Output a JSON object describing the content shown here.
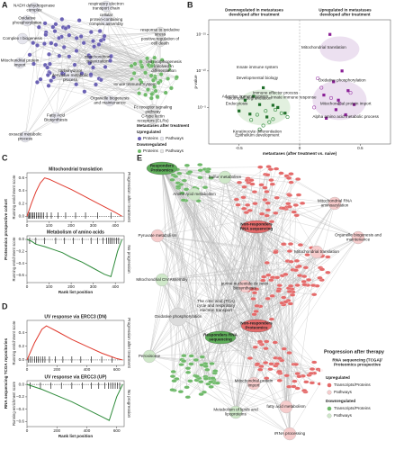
{
  "panel_labels": [
    "A",
    "B",
    "C",
    "D",
    "E"
  ],
  "network_a": {
    "nodes": [
      {
        "label": "NADH dehydrogenase complex",
        "color": "#e6e6ee"
      },
      {
        "label": "respiratory electron transport chain",
        "color": "#e6e6ee"
      },
      {
        "label": "Oxidative phosphorylation",
        "color": "#e6e6ee"
      },
      {
        "label": "cellular protein-containing complex assembly",
        "color": "#e6e6ee"
      },
      {
        "label": "Complex I biogenesis",
        "color": "#e6e6ee"
      },
      {
        "label": "Mitochondrial protein import",
        "color": "#e6e6ee"
      },
      {
        "label": "carbohydrate derivative metabolic process",
        "color": "#e6e6ee"
      },
      {
        "label": "mitochondrion organization",
        "color": "#e6e6ee"
      },
      {
        "label": "Organelle biogenesis and maintenance",
        "color": "#e6e6ee"
      },
      {
        "label": "Fatty Acid Biosynthesis",
        "color": "#e6e6ee"
      },
      {
        "label": "oxoacid metabolic process",
        "color": "#e6e6ee"
      },
      {
        "label": "response to oxidative stress",
        "color": "#e6e6e6"
      },
      {
        "label": "positive regulation of cell death",
        "color": "#e6e6e6"
      },
      {
        "label": "cell morphogenesis involved in differentiation",
        "color": "#e6e6e6"
      },
      {
        "label": "Innate Immune System",
        "color": "#e6e6e6"
      },
      {
        "label": "Fc receptor signaling pathway",
        "color": "#e6e6e6"
      },
      {
        "label": "C-type lectin receptors (CLRs)",
        "color": "#e6e6e6"
      }
    ],
    "up_color": "#6b62b4",
    "down_color": "#6fb96a",
    "legend": {
      "title": "Metastases after treatment",
      "up": "Upregulated",
      "up_proteins": "Proteins",
      "up_pathways": "Pathways",
      "down": "Downregulated",
      "down_proteins": "Proteins",
      "down_pathways": "Pathways"
    }
  },
  "chart_data": [
    {
      "type": "scatter",
      "header_left": "Downregulated in metastases developed after treatment",
      "header_right": "Upregulated in metastases developed after treatment",
      "x_label": "metastases (after treatment vs. naive)",
      "y_label": "p-value",
      "log_y": true,
      "xlim": [
        -0.75,
        0.75
      ],
      "xticks": [
        -0.5,
        0,
        0.5
      ],
      "ylim": [
        1,
        1e-17
      ],
      "yticks": [
        {
          "value": 1e-15,
          "label": "10⁻¹⁵"
        },
        {
          "value": 1e-10,
          "label": "10⁻¹⁰"
        },
        {
          "value": 1e-05,
          "label": "10⁻⁵"
        }
      ],
      "series": [
        {
          "color": "#1f6e2a",
          "marker": "square",
          "x": [
            -0.45,
            -0.38,
            -0.3,
            -0.22,
            -0.5,
            -0.33,
            -0.18,
            -0.41,
            -0.27,
            -0.12
          ],
          "values": [
            1e-06,
            3e-07,
            2e-08,
            5e-06,
            3e-05,
            4e-06,
            1e-05,
            8e-05,
            0.0002,
            6e-05
          ]
        },
        {
          "color": "#2e8b3a",
          "marker": "circle",
          "x": [
            -0.35,
            -0.28,
            -0.2,
            -0.15,
            -0.25,
            -0.4,
            -0.3,
            -0.1,
            -0.22,
            -0.33
          ],
          "values": [
            0.0001,
            3e-05,
            2e-05,
            6e-05,
            0.001,
            0.0005,
            0.003,
            0.0002,
            0.0004,
            0.01
          ]
        },
        {
          "color": "#8a1f96",
          "marker": "square",
          "x": [
            0.25,
            0.35,
            0.28,
            0.4,
            0.2,
            0.32,
            0.45,
            0.3,
            0.38,
            0.22
          ],
          "values": [
            1e-15,
            1e-10,
            3e-09,
            5e-08,
            2e-07,
            1e-06,
            4e-06,
            2e-05,
            0.0001,
            0.0003
          ]
        },
        {
          "color": "#a040ad",
          "marker": "circle",
          "x": [
            0.15,
            0.18,
            0.26,
            0.33,
            0.12,
            0.42
          ],
          "values": [
            1e-09,
            2e-08,
            5e-07,
            3e-06,
            1e-05,
            1e-07
          ]
        }
      ],
      "annotations": [
        "Innate immune system",
        "Developmental biology",
        "Immune effector process",
        "Adaptive immune system",
        "Neutrophil degranulation",
        "Innate immune response",
        "Endocytosis",
        "Keratinocyte differentiation",
        "Epithelium development",
        "Mitochondrial translation",
        "Oxidative phosphorylation",
        "Mitochondrial protein import",
        "Alpha amino acid metabolic process"
      ]
    },
    {
      "type": "line",
      "title": "Mitochondrial translation",
      "y_label": "Running enrichment score",
      "side_label": "Progression after treatment",
      "color": "#e03a2e",
      "x": [
        0,
        20,
        40,
        60,
        80,
        100,
        150,
        200,
        250,
        300,
        350,
        400,
        430
      ],
      "values": [
        0,
        0.2,
        0.38,
        0.52,
        0.6,
        0.58,
        0.5,
        0.42,
        0.33,
        0.24,
        0.15,
        0.06,
        0
      ],
      "hits": [
        5,
        10,
        15,
        22,
        28,
        35,
        42,
        50,
        58,
        66,
        75,
        90,
        110,
        140,
        175,
        220,
        265,
        320,
        380
      ],
      "xlim": [
        0,
        440
      ],
      "xticks": [
        0,
        100,
        200,
        300,
        400
      ],
      "ylim": [
        -0.08,
        0.68
      ],
      "yticks": [
        {
          "value": 0,
          "label": "0.0"
        },
        0.2,
        0.4,
        0.6
      ]
    },
    {
      "type": "line",
      "title": "Metabolism of amino acids",
      "y_label": "Running enrichment score",
      "x_label": "Rank list position",
      "side_label": "No progression",
      "color": "#2e8b3a",
      "x": [
        0,
        20,
        40,
        80,
        120,
        160,
        200,
        250,
        300,
        350,
        380,
        410,
        430
      ],
      "values": [
        0,
        -0.03,
        -0.08,
        -0.12,
        -0.17,
        -0.22,
        -0.3,
        -0.38,
        -0.48,
        -0.58,
        -0.62,
        -0.2,
        0
      ],
      "hits": [
        12,
        40,
        80,
        130,
        170,
        210,
        250,
        290,
        320,
        345,
        360,
        370,
        378,
        385,
        395,
        405,
        415
      ],
      "xlim": [
        0,
        440
      ],
      "xticks": [
        0,
        100,
        200,
        300,
        400
      ],
      "ylim": [
        -0.72,
        0.06
      ],
      "yticks": [
        {
          "value": 0,
          "label": "0.0"
        },
        {
          "value": -0.2,
          "label": "−0.2"
        },
        {
          "value": -0.4,
          "label": "−0.4"
        },
        {
          "value": -0.6,
          "label": "−0.6"
        }
      ]
    },
    {
      "type": "line",
      "title": "UV response via ERCC3 (DN)",
      "y_label": "Running enrichment score",
      "side_label": "Progression after treatment",
      "color": "#e03a2e",
      "x": [
        0,
        50,
        100,
        130,
        200,
        300,
        400,
        500,
        600,
        640
      ],
      "values": [
        0,
        0.25,
        0.45,
        0.5,
        0.42,
        0.3,
        0.2,
        0.1,
        0.02,
        0
      ],
      "hits": [
        8,
        20,
        35,
        50,
        62,
        75,
        90,
        105,
        120,
        150,
        190,
        240,
        300,
        360,
        430,
        500,
        570
      ],
      "xlim": [
        0,
        650
      ],
      "xticks": [
        0,
        200,
        400,
        600
      ],
      "ylim": [
        -0.08,
        0.58
      ],
      "yticks": [
        {
          "value": 0,
          "label": "0.0"
        },
        0.2,
        0.4
      ]
    },
    {
      "type": "line",
      "title": "UV response via ERCC3 (UP)",
      "y_label": "Running enrichment score",
      "x_label": "Rank list position",
      "side_label": "No progression",
      "color": "#2e8b3a",
      "x": [
        0,
        100,
        200,
        300,
        400,
        500,
        550,
        600,
        640
      ],
      "values": [
        0,
        -0.08,
        -0.18,
        -0.28,
        -0.4,
        -0.52,
        -0.58,
        -0.2,
        0
      ],
      "hits": [
        20,
        90,
        160,
        230,
        300,
        370,
        430,
        480,
        520,
        545,
        560,
        575,
        590,
        605,
        620
      ],
      "xlim": [
        0,
        650
      ],
      "xticks": [
        0,
        200,
        400,
        600
      ],
      "ylim": [
        -0.68,
        0.06
      ],
      "yticks": [
        {
          "value": 0,
          "label": "0.0"
        },
        {
          "value": -0.2,
          "label": "−0.2"
        },
        {
          "value": -0.4,
          "label": "−0.4"
        },
        {
          "value": -0.6,
          "label": "−0.6"
        }
      ]
    }
  ],
  "gsea_cohorts": [
    "Proteomics prospective cohort",
    "RNA sequencing TCGA repositories"
  ],
  "network_e": {
    "hubs": [
      {
        "label": "Responders Proteomics",
        "color": "#5fae5a"
      },
      {
        "label": "Non-responders RNA sequencing",
        "color": "#e46a6a"
      },
      {
        "label": "Non-responders Proteomics",
        "color": "#e46a6a"
      },
      {
        "label": "Responders RNA sequencing",
        "color": "#5fae5a"
      }
    ],
    "pathways": [
      {
        "label": "Sulfur metabolism",
        "color": "#cfe8c9"
      },
      {
        "label": "Amino Acid metabolism",
        "color": "#cfe8c9"
      },
      {
        "label": "Mitochondrial RNA aminoacylation",
        "color": "#f6cccc"
      },
      {
        "label": "Pyruvate metabolism",
        "color": "#f6cccc"
      },
      {
        "label": "Mitochondrial translation",
        "color": "#f6cccc"
      },
      {
        "label": "Organelle biogenesis and maintenance",
        "color": "#f6cccc"
      },
      {
        "label": "Mitochondrial CIV Assembly",
        "color": "#cfe8c9"
      },
      {
        "label": "purine nucleotide de novo biosynthesis",
        "color": "#f6cccc"
      },
      {
        "label": "The citric acid (TCA) cycle and respiratory electron transport",
        "color": "#e6e6e6"
      },
      {
        "label": "Oxidative phosphorylation",
        "color": "#dcdcdc"
      },
      {
        "label": "Peroxisome",
        "color": "#cfe8c9"
      },
      {
        "label": "Mitochondrial protein import",
        "color": "#f6cccc"
      },
      {
        "label": "Metabolism of lipids and lipoproteins",
        "color": "#cfe8c9"
      },
      {
        "label": "fatty acid metabolism",
        "color": "#f6cccc"
      },
      {
        "label": "rRNA processing",
        "color": "#f6cccc"
      }
    ],
    "up_color": "#e46a6a",
    "up_path_color": "#f6cccc",
    "down_color": "#6fb96a",
    "down_path_color": "#cfe8c9",
    "legend": {
      "title": "Progression after therapy",
      "subtitle": "RNA sequencing (TCGA)/ Proteomics prospective",
      "up": "Upregulated",
      "up_items": "Transcripts/Proteins",
      "up_paths": "Pathways",
      "down": "Downregulated",
      "down_items": "Transcripts/Proteins",
      "down_paths": "Pathways"
    }
  }
}
